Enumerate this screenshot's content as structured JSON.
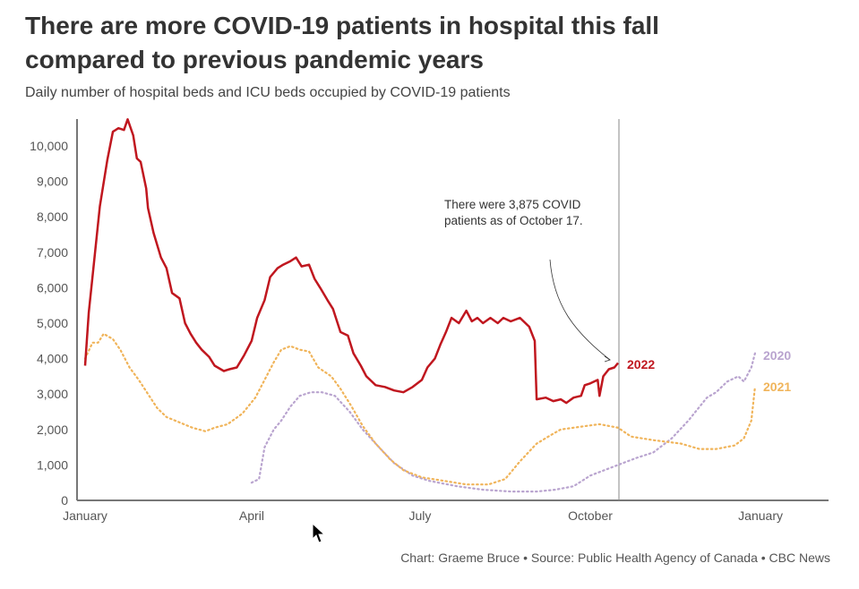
{
  "header": {
    "title_line1": "There are more COVID-19 patients in hospital this fall",
    "title_line2": "compared to previous pandemic years",
    "subtitle": "Daily number of hospital beds and ICU beds occupied by COVID-19 patients"
  },
  "footer": {
    "source": "Chart: Graeme Bruce • Source: Public Health Agency of Canada • CBC News"
  },
  "chart_data": {
    "type": "line",
    "title": "There are more COVID-19 patients in hospital this fall compared to previous pandemic years",
    "xlabel": "",
    "ylabel": "",
    "x_unit": "day of year",
    "xlim": [
      0,
      400
    ],
    "ylim": [
      0,
      10000
    ],
    "x_ticks": [
      {
        "day": 0,
        "label": "January"
      },
      {
        "day": 90,
        "label": "April"
      },
      {
        "day": 181,
        "label": "July"
      },
      {
        "day": 273,
        "label": "October"
      },
      {
        "day": 365,
        "label": "January"
      }
    ],
    "y_ticks": [
      {
        "v": 0,
        "label": "0"
      },
      {
        "v": 1000,
        "label": "1,000"
      },
      {
        "v": 2000,
        "label": "2,000"
      },
      {
        "v": 3000,
        "label": "3,000"
      },
      {
        "v": 4000,
        "label": "4,000"
      },
      {
        "v": 5000,
        "label": "5,000"
      },
      {
        "v": 6000,
        "label": "6,000"
      },
      {
        "v": 7000,
        "label": "7,000"
      },
      {
        "v": 8000,
        "label": "8,000"
      },
      {
        "v": 9000,
        "label": "9,000"
      },
      {
        "v": 10000,
        "label": "10,000"
      }
    ],
    "annotation": {
      "line1": "There were 3,875 COVID",
      "line2": "patients as of October 17.",
      "day": 288,
      "value": 3875
    },
    "series": [
      {
        "name": "2022",
        "color": "#c0171f",
        "style": "solid",
        "points": [
          [
            0,
            3800
          ],
          [
            2,
            5300
          ],
          [
            5,
            6800
          ],
          [
            8,
            8300
          ],
          [
            12,
            9600
          ],
          [
            15,
            10400
          ],
          [
            18,
            10500
          ],
          [
            21,
            10450
          ],
          [
            23,
            10750
          ],
          [
            26,
            10300
          ],
          [
            28,
            9650
          ],
          [
            30,
            9550
          ],
          [
            33,
            8800
          ],
          [
            34,
            8250
          ],
          [
            37,
            7550
          ],
          [
            41,
            6850
          ],
          [
            44,
            6550
          ],
          [
            47,
            5850
          ],
          [
            51,
            5700
          ],
          [
            54,
            5000
          ],
          [
            57,
            4700
          ],
          [
            60,
            4450
          ],
          [
            63,
            4250
          ],
          [
            67,
            4050
          ],
          [
            70,
            3800
          ],
          [
            75,
            3650
          ],
          [
            78,
            3700
          ],
          [
            82,
            3750
          ],
          [
            86,
            4100
          ],
          [
            90,
            4500
          ],
          [
            93,
            5150
          ],
          [
            97,
            5650
          ],
          [
            100,
            6300
          ],
          [
            104,
            6550
          ],
          [
            107,
            6650
          ],
          [
            111,
            6750
          ],
          [
            114,
            6850
          ],
          [
            117,
            6600
          ],
          [
            121,
            6650
          ],
          [
            124,
            6250
          ],
          [
            127,
            6000
          ],
          [
            131,
            5650
          ],
          [
            134,
            5400
          ],
          [
            138,
            4750
          ],
          [
            142,
            4650
          ],
          [
            145,
            4150
          ],
          [
            149,
            3800
          ],
          [
            152,
            3500
          ],
          [
            157,
            3250
          ],
          [
            162,
            3200
          ],
          [
            167,
            3100
          ],
          [
            172,
            3050
          ],
          [
            177,
            3200
          ],
          [
            182,
            3400
          ],
          [
            185,
            3750
          ],
          [
            189,
            4000
          ],
          [
            192,
            4400
          ],
          [
            195,
            4750
          ],
          [
            198,
            5150
          ],
          [
            202,
            5000
          ],
          [
            206,
            5350
          ],
          [
            209,
            5050
          ],
          [
            212,
            5150
          ],
          [
            215,
            5000
          ],
          [
            219,
            5150
          ],
          [
            223,
            5000
          ],
          [
            226,
            5150
          ],
          [
            230,
            5050
          ],
          [
            235,
            5150
          ],
          [
            240,
            4900
          ],
          [
            243,
            4500
          ],
          [
            244,
            2850
          ],
          [
            249,
            2900
          ],
          [
            253,
            2800
          ],
          [
            257,
            2850
          ],
          [
            260,
            2750
          ],
          [
            264,
            2900
          ],
          [
            268,
            2950
          ],
          [
            270,
            3250
          ],
          [
            273,
            3300
          ],
          [
            277,
            3400
          ],
          [
            278,
            2950
          ],
          [
            280,
            3500
          ],
          [
            283,
            3700
          ],
          [
            286,
            3750
          ],
          [
            288,
            3875
          ]
        ]
      },
      {
        "name": "2021",
        "color": "#f0b45a",
        "style": "dotted",
        "points": [
          [
            0,
            4000
          ],
          [
            4,
            4450
          ],
          [
            7,
            4450
          ],
          [
            10,
            4700
          ],
          [
            15,
            4550
          ],
          [
            19,
            4250
          ],
          [
            24,
            3750
          ],
          [
            29,
            3400
          ],
          [
            34,
            3000
          ],
          [
            39,
            2600
          ],
          [
            44,
            2350
          ],
          [
            51,
            2200
          ],
          [
            58,
            2050
          ],
          [
            65,
            1950
          ],
          [
            70,
            2050
          ],
          [
            77,
            2150
          ],
          [
            85,
            2450
          ],
          [
            92,
            2900
          ],
          [
            97,
            3400
          ],
          [
            102,
            3900
          ],
          [
            106,
            4250
          ],
          [
            111,
            4350
          ],
          [
            116,
            4250
          ],
          [
            121,
            4200
          ],
          [
            126,
            3750
          ],
          [
            133,
            3500
          ],
          [
            138,
            3150
          ],
          [
            144,
            2650
          ],
          [
            150,
            2100
          ],
          [
            157,
            1600
          ],
          [
            165,
            1150
          ],
          [
            172,
            850
          ],
          [
            182,
            650
          ],
          [
            194,
            550
          ],
          [
            206,
            450
          ],
          [
            218,
            450
          ],
          [
            227,
            600
          ],
          [
            235,
            1100
          ],
          [
            244,
            1600
          ],
          [
            252,
            1850
          ],
          [
            257,
            2000
          ],
          [
            264,
            2050
          ],
          [
            271,
            2100
          ],
          [
            278,
            2150
          ],
          [
            288,
            2050
          ],
          [
            295,
            1800
          ],
          [
            307,
            1700
          ],
          [
            322,
            1600
          ],
          [
            332,
            1450
          ],
          [
            341,
            1450
          ],
          [
            351,
            1550
          ],
          [
            356,
            1750
          ],
          [
            360,
            2250
          ],
          [
            362,
            3200
          ]
        ]
      },
      {
        "name": "2020",
        "color": "#b9a4cf",
        "style": "dotted",
        "points": [
          [
            90,
            500
          ],
          [
            94,
            600
          ],
          [
            97,
            1500
          ],
          [
            102,
            2000
          ],
          [
            106,
            2250
          ],
          [
            111,
            2650
          ],
          [
            116,
            2950
          ],
          [
            122,
            3050
          ],
          [
            128,
            3050
          ],
          [
            135,
            2950
          ],
          [
            143,
            2500
          ],
          [
            150,
            2000
          ],
          [
            157,
            1600
          ],
          [
            167,
            1050
          ],
          [
            177,
            700
          ],
          [
            186,
            550
          ],
          [
            201,
            400
          ],
          [
            215,
            300
          ],
          [
            230,
            250
          ],
          [
            244,
            250
          ],
          [
            254,
            300
          ],
          [
            264,
            400
          ],
          [
            273,
            700
          ],
          [
            288,
            1000
          ],
          [
            298,
            1200
          ],
          [
            307,
            1350
          ],
          [
            317,
            1750
          ],
          [
            326,
            2250
          ],
          [
            336,
            2900
          ],
          [
            341,
            3050
          ],
          [
            347,
            3350
          ],
          [
            353,
            3500
          ],
          [
            356,
            3350
          ],
          [
            360,
            3750
          ],
          [
            362,
            4150
          ]
        ]
      }
    ]
  }
}
